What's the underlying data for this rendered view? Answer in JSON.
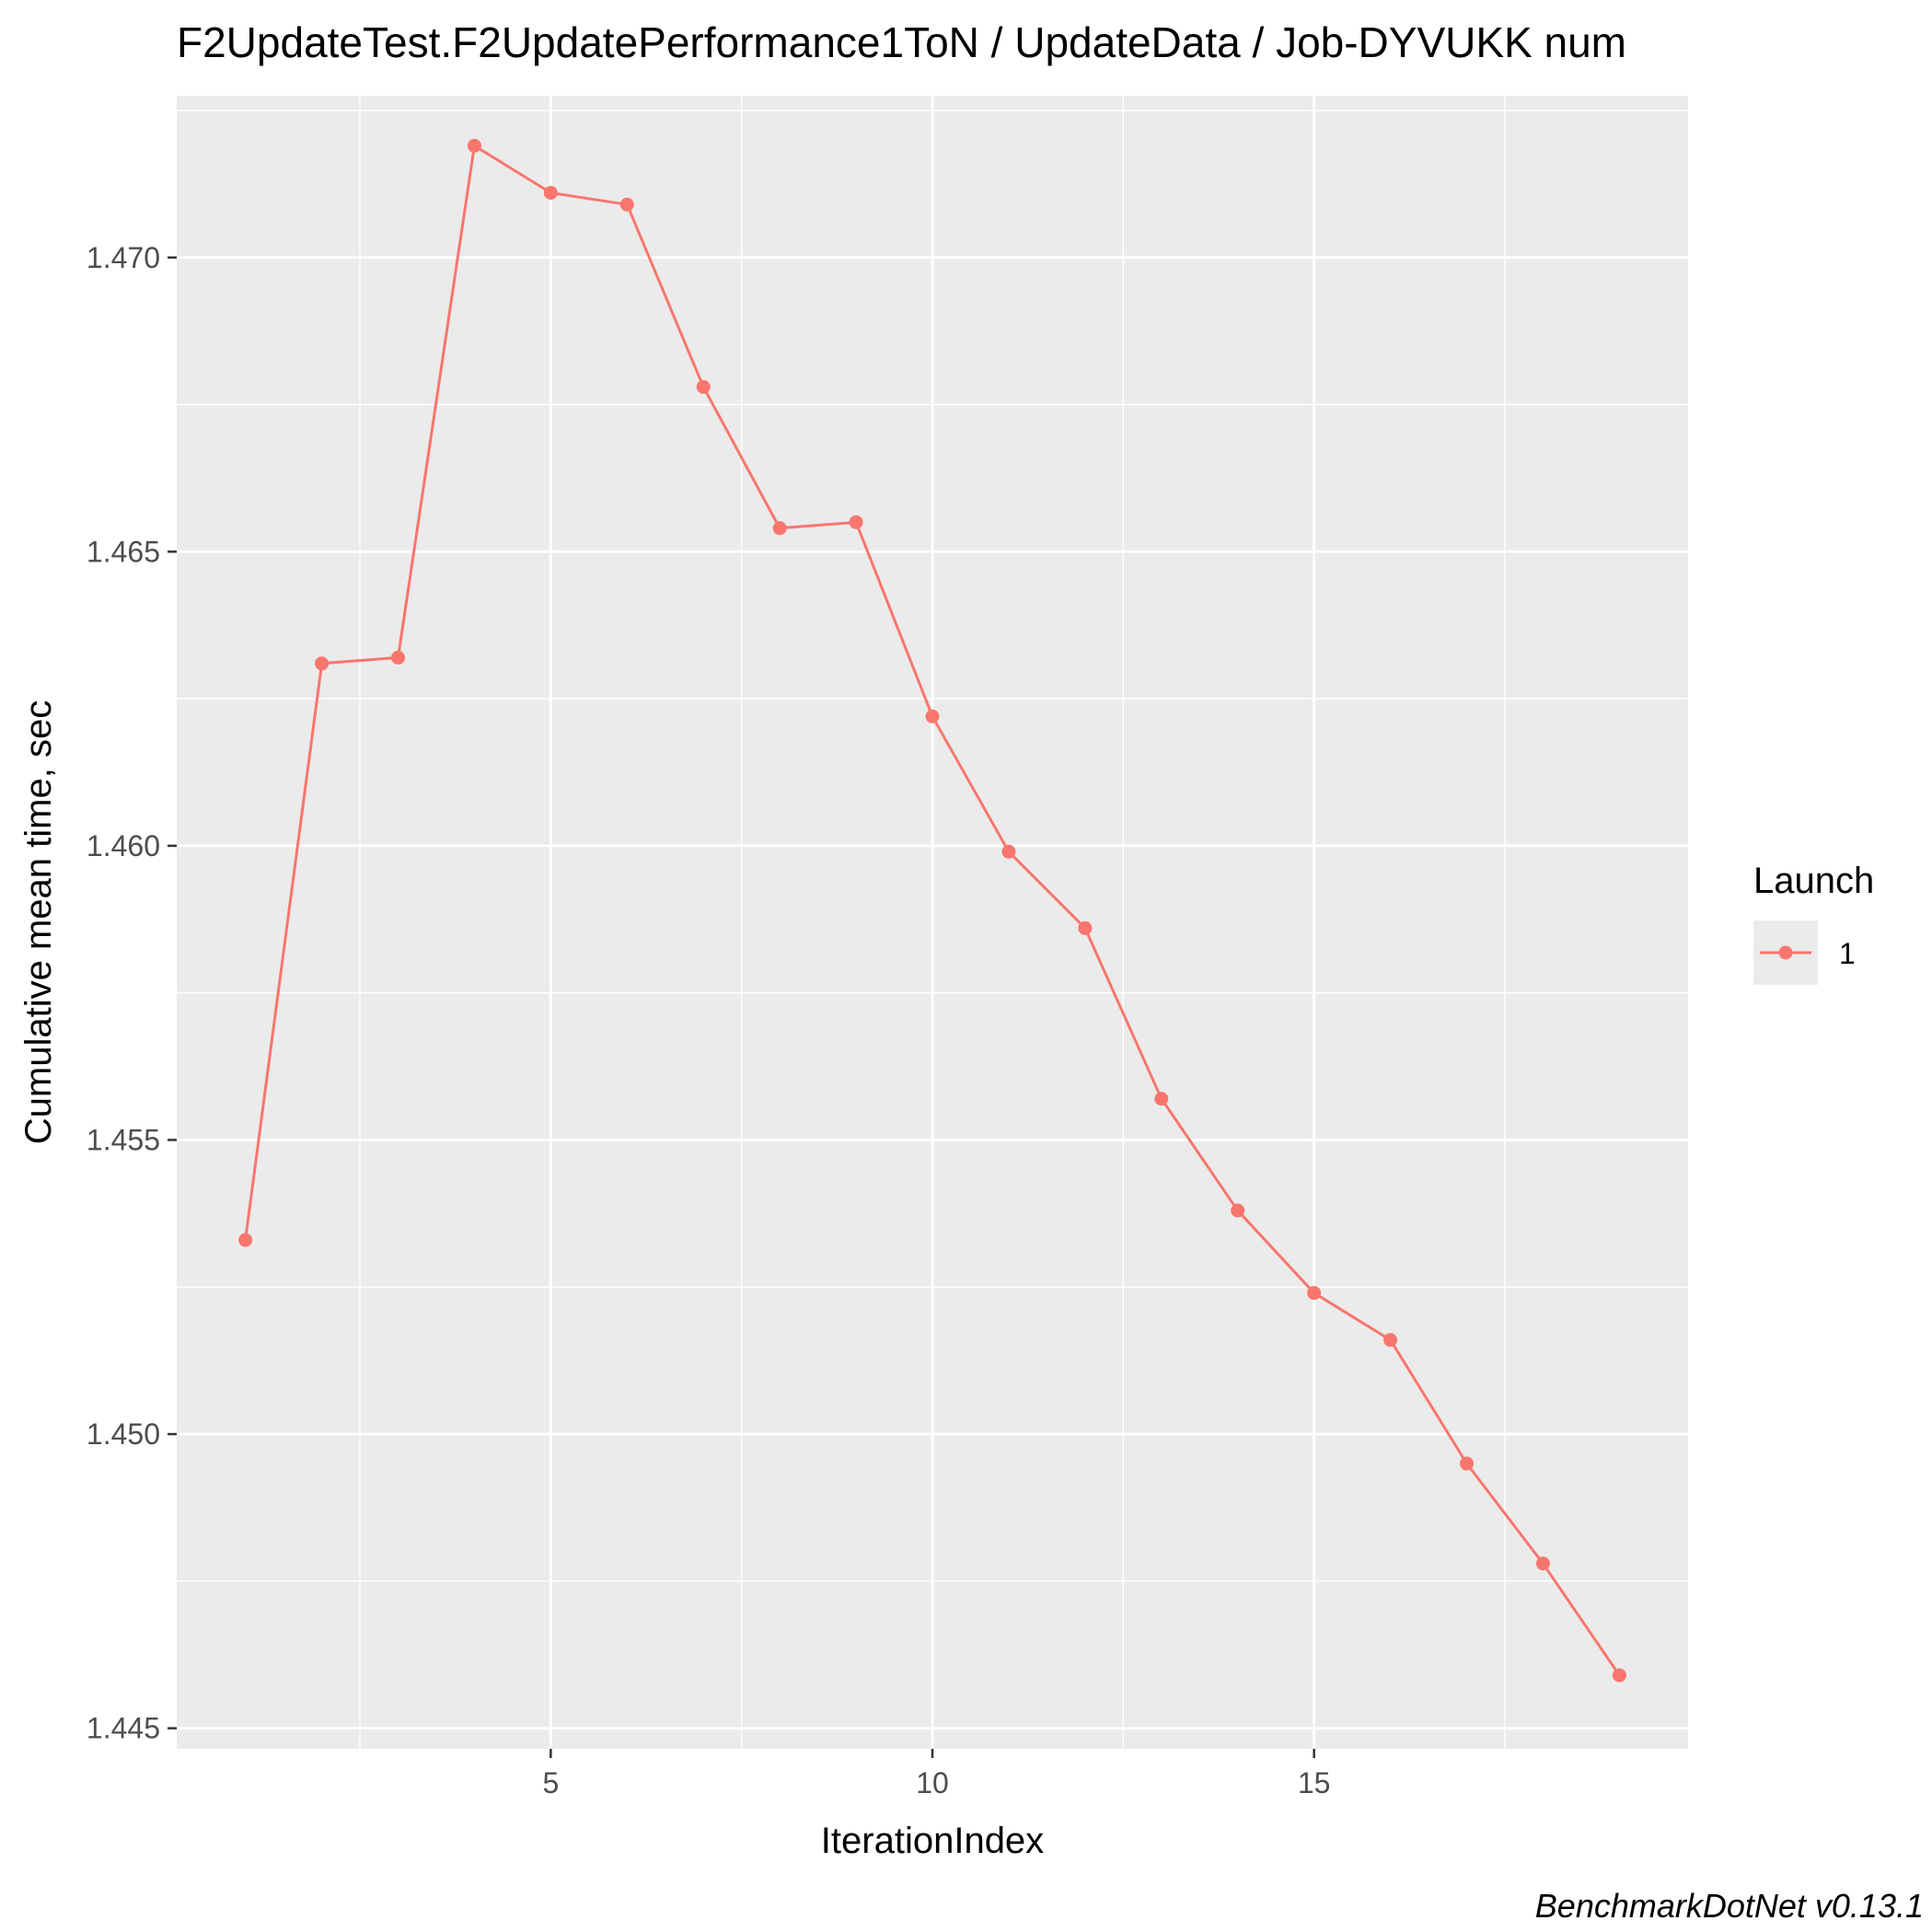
{
  "chart_data": {
    "type": "line",
    "title": "F2UpdateTest.F2UpdatePerformance1ToN / UpdateData / Job-DYVUKK num",
    "xlabel": "IterationIndex",
    "ylabel": "Cumulative mean time, sec",
    "caption": "BenchmarkDotNet v0.13.1",
    "xlim": [
      0.1,
      19.9
    ],
    "ylim": [
      1.44465,
      1.47275
    ],
    "x_ticks": [
      5,
      10,
      15
    ],
    "x_tick_labels": [
      "5",
      "10",
      "15"
    ],
    "y_ticks": [
      1.445,
      1.45,
      1.455,
      1.46,
      1.465,
      1.47
    ],
    "y_tick_labels": [
      "1.445",
      "1.450",
      "1.455",
      "1.460",
      "1.465",
      "1.470"
    ],
    "grid": true,
    "legend": {
      "title": "Launch",
      "position": "right",
      "entries": [
        "1"
      ]
    },
    "colors": {
      "panel_background": "#ebebeb",
      "series": "#f8766d",
      "legend_key_background": "#ebebeb"
    },
    "series": [
      {
        "name": "1",
        "x": [
          1,
          2,
          3,
          4,
          5,
          6,
          7,
          8,
          9,
          10,
          11,
          12,
          13,
          14,
          15,
          16,
          17,
          18,
          19
        ],
        "values": [
          1.4533,
          1.4631,
          1.4632,
          1.4719,
          1.4711,
          1.4709,
          1.4678,
          1.4654,
          1.4655,
          1.4622,
          1.4599,
          1.4586,
          1.4557,
          1.4538,
          1.4524,
          1.4516,
          1.4495,
          1.4478,
          1.4459
        ]
      }
    ]
  }
}
